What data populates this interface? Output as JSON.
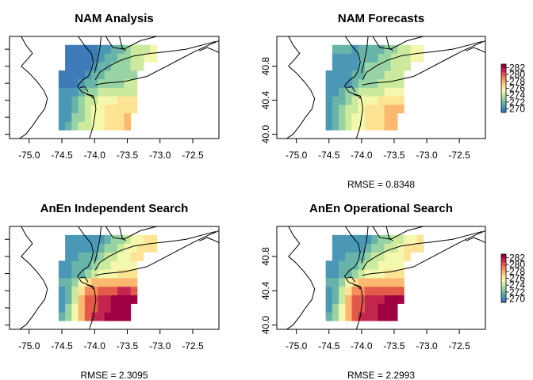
{
  "chart_data": [
    {
      "type": "heatmap",
      "title": "NAM Analysis",
      "x_ticks": [
        "-75.0",
        "-74.5",
        "-74.0",
        "-73.5",
        "-73.0",
        "-72.5"
      ],
      "y_ticks": [],
      "rmse_label": "",
      "colorbar": false
    },
    {
      "type": "heatmap",
      "title": "NAM Forecasts",
      "x_ticks": [
        "-75.0",
        "-74.5",
        "-74.0",
        "-73.5",
        "-73.0",
        "-72.5"
      ],
      "y_ticks": [
        "40.0",
        "40.4",
        "40.8"
      ],
      "rmse_label": "RMSE = 0.8348",
      "colorbar": true
    },
    {
      "type": "heatmap",
      "title": "AnEn Independent Search",
      "x_ticks": [
        "-75.0",
        "-74.5",
        "-74.0",
        "-73.5",
        "-73.0",
        "-72.5"
      ],
      "y_ticks": [],
      "rmse_label": "RMSE = 2.3095",
      "colorbar": false
    },
    {
      "type": "heatmap",
      "title": "AnEn Operational Search",
      "x_ticks": [
        "-75.0",
        "-74.5",
        "-74.0",
        "-73.5",
        "-73.0",
        "-72.5"
      ],
      "y_ticks": [
        "40.0",
        "40.4",
        "40.8"
      ],
      "rmse_label": "RMSE = 2.2993",
      "colorbar": true
    }
  ],
  "xlim": [
    -75.3,
    -72.1
  ],
  "ylim": [
    39.95,
    41.15
  ],
  "grid": {
    "lon_start": -74.55,
    "lat_start": 40.05,
    "step": 0.1,
    "cols": 15,
    "rows": 10
  },
  "colorbar_ticks": [
    "282",
    "280",
    "278",
    "276",
    "274",
    "272",
    "270"
  ],
  "colorbar_range": [
    269,
    283
  ],
  "palette": [
    "#3E7BB8",
    "#4A98B5",
    "#69B4A8",
    "#98D3A3",
    "#CCEA9E",
    "#F3F8AC",
    "#FDE394",
    "#FCB86F",
    "#F58C59",
    "#E25A4A",
    "#C4254E",
    "#9E0142"
  ],
  "fields": [
    {
      "temps": [
        [
          270.5,
          271.5,
          272.8,
          273.8,
          274.6,
          275.2,
          275.8,
          276.3,
          276.8,
          277.0,
          277.2,
          null,
          null,
          null,
          null
        ],
        [
          270.4,
          271.3,
          272.6,
          273.6,
          274.5,
          275.1,
          275.7,
          276.3,
          276.7,
          277.0,
          277.2,
          null,
          null,
          null,
          null
        ],
        [
          270.5,
          271.0,
          272.3,
          273.6,
          274.4,
          275.0,
          275.5,
          276.1,
          276.5,
          276.8,
          277.0,
          277.0,
          null,
          null,
          null
        ],
        [
          270.7,
          271.2,
          272.0,
          273.1,
          274.0,
          274.6,
          275.1,
          275.5,
          275.8,
          276.0,
          276.0,
          276.0,
          null,
          null,
          null
        ],
        [
          270.8,
          271.0,
          271.2,
          272.2,
          273.0,
          273.6,
          273.8,
          274.0,
          274.2,
          274.4,
          274.5,
          274.6,
          null,
          null,
          null
        ],
        [
          268.7,
          268.9,
          269.3,
          270.4,
          271.4,
          272.3,
          272.8,
          273.1,
          273.3,
          273.5,
          273.7,
          273.9,
          null,
          null,
          null
        ],
        [
          268.4,
          268.6,
          268.9,
          269.6,
          270.6,
          271.6,
          272.2,
          272.6,
          272.9,
          273.1,
          273.3,
          273.5,
          null,
          null,
          null
        ],
        [
          null,
          268.6,
          268.9,
          269.1,
          269.8,
          270.8,
          271.7,
          272.1,
          272.6,
          273.2,
          273.5,
          273.9,
          274.2,
          null,
          null
        ],
        [
          null,
          269.4,
          269.2,
          269.0,
          269.3,
          270.0,
          270.9,
          271.6,
          272.1,
          272.9,
          273.5,
          274.1,
          274.6,
          275.0,
          275.3
        ],
        [
          null,
          269.6,
          269.5,
          269.4,
          269.6,
          270.1,
          270.6,
          271.0,
          271.6,
          272.3,
          273.1,
          273.7,
          274.2,
          274.8,
          275.2
        ]
      ]
    },
    {
      "temps": [
        [
          271.0,
          272.0,
          273.0,
          274.2,
          275.0,
          275.6,
          276.2,
          276.7,
          277.1,
          277.4,
          277.6,
          null,
          null,
          null,
          null
        ],
        [
          270.9,
          271.8,
          272.8,
          274.0,
          274.9,
          275.5,
          276.1,
          276.6,
          277.0,
          277.3,
          277.5,
          null,
          null,
          null,
          null
        ],
        [
          270.8,
          271.6,
          272.5,
          273.9,
          274.8,
          275.4,
          276.0,
          276.5,
          276.9,
          277.2,
          277.3,
          277.3,
          null,
          null,
          null
        ],
        [
          271.0,
          271.5,
          272.2,
          273.4,
          274.4,
          275.0,
          275.5,
          275.9,
          276.2,
          276.4,
          276.4,
          276.3,
          null,
          null,
          null
        ],
        [
          271.3,
          271.3,
          271.6,
          272.6,
          273.6,
          274.2,
          274.4,
          274.6,
          274.8,
          275.0,
          275.0,
          275.0,
          null,
          null,
          null
        ],
        [
          270.6,
          270.8,
          271.0,
          271.2,
          272.0,
          272.9,
          273.4,
          273.6,
          273.8,
          274.0,
          274.1,
          274.2,
          null,
          null,
          null
        ],
        [
          270.6,
          270.8,
          271.0,
          271.1,
          271.4,
          272.4,
          273.0,
          273.3,
          273.6,
          273.8,
          273.9,
          274.0,
          null,
          null,
          null
        ],
        [
          null,
          270.9,
          271.1,
          271.2,
          271.3,
          271.6,
          272.5,
          272.9,
          273.2,
          273.6,
          273.9,
          274.2,
          274.4,
          null,
          null
        ],
        [
          null,
          271.2,
          271.3,
          271.3,
          271.2,
          271.4,
          271.9,
          272.3,
          272.7,
          273.2,
          273.7,
          274.2,
          274.7,
          275.0,
          275.2
        ],
        [
          null,
          271.4,
          271.4,
          271.4,
          271.3,
          271.4,
          271.6,
          271.9,
          272.3,
          272.8,
          273.3,
          273.9,
          274.4,
          274.9,
          275.2
        ]
      ]
    },
    {
      "temps": [
        [
          271.5,
          273.0,
          275.5,
          278.2,
          280.0,
          280.8,
          281.4,
          281.9,
          282.3,
          282.6,
          282.8,
          null,
          null,
          null,
          null
        ],
        [
          271.3,
          272.7,
          275.0,
          277.8,
          279.8,
          280.6,
          281.2,
          281.7,
          282.1,
          282.4,
          282.6,
          null,
          null,
          null,
          null
        ],
        [
          271.0,
          272.3,
          274.5,
          277.6,
          279.6,
          280.4,
          281.0,
          281.5,
          281.9,
          282.1,
          282.2,
          282.2,
          null,
          null,
          null
        ],
        [
          271.2,
          272.0,
          273.8,
          276.6,
          278.5,
          279.3,
          279.8,
          280.2,
          280.5,
          280.7,
          280.7,
          280.6,
          null,
          null,
          null
        ],
        [
          271.8,
          272.1,
          273.0,
          275.0,
          276.6,
          277.3,
          277.7,
          277.9,
          278.1,
          278.3,
          278.3,
          278.2,
          null,
          null,
          null
        ],
        [
          271.0,
          271.2,
          271.5,
          271.8,
          273.0,
          274.4,
          275.2,
          275.6,
          275.9,
          276.1,
          276.3,
          276.4,
          null,
          null,
          null
        ],
        [
          270.9,
          271.1,
          271.4,
          271.6,
          271.9,
          273.2,
          274.2,
          274.8,
          275.2,
          275.5,
          275.7,
          275.8,
          null,
          null,
          null
        ],
        [
          null,
          271.0,
          271.3,
          271.5,
          271.6,
          272.0,
          273.4,
          274.2,
          274.6,
          275.0,
          275.5,
          276.0,
          276.3,
          null,
          null
        ],
        [
          null,
          270.9,
          271.0,
          271.1,
          271.0,
          271.3,
          272.2,
          273.0,
          273.6,
          274.2,
          274.9,
          275.6,
          276.1,
          276.4,
          276.5
        ],
        [
          null,
          270.8,
          270.9,
          270.9,
          270.8,
          271.0,
          271.3,
          271.9,
          272.6,
          273.3,
          274.1,
          274.9,
          275.5,
          276.0,
          276.3
        ]
      ]
    },
    {
      "temps": [
        [
          271.4,
          272.9,
          275.3,
          278.0,
          279.9,
          280.7,
          281.3,
          281.8,
          282.2,
          282.5,
          282.7,
          null,
          null,
          null,
          null
        ],
        [
          271.2,
          272.6,
          274.9,
          277.7,
          279.7,
          280.5,
          281.1,
          281.6,
          282.0,
          282.3,
          282.5,
          null,
          null,
          null,
          null
        ],
        [
          271.0,
          272.2,
          274.4,
          277.5,
          279.5,
          280.3,
          280.9,
          281.4,
          281.8,
          282.0,
          282.1,
          282.1,
          null,
          null,
          null
        ],
        [
          271.2,
          272.0,
          273.8,
          276.5,
          278.4,
          279.2,
          279.7,
          280.1,
          280.4,
          280.6,
          280.6,
          280.5,
          null,
          null,
          null
        ],
        [
          271.7,
          272.0,
          272.9,
          274.9,
          276.5,
          277.2,
          277.6,
          277.8,
          278.0,
          278.2,
          278.2,
          278.1,
          null,
          null,
          null
        ],
        [
          271.0,
          271.2,
          271.5,
          271.8,
          273.0,
          274.3,
          275.1,
          275.5,
          275.8,
          276.0,
          276.2,
          276.3,
          null,
          null,
          null
        ],
        [
          270.9,
          271.1,
          271.4,
          271.6,
          271.9,
          273.1,
          274.1,
          274.7,
          275.1,
          275.4,
          275.6,
          275.7,
          null,
          null,
          null
        ],
        [
          null,
          271.0,
          271.3,
          271.5,
          271.6,
          272.0,
          273.3,
          274.1,
          274.5,
          274.9,
          275.4,
          275.9,
          276.2,
          null,
          null
        ],
        [
          null,
          270.9,
          271.0,
          271.1,
          271.0,
          271.3,
          272.1,
          272.9,
          273.5,
          274.1,
          274.8,
          275.5,
          276.0,
          276.3,
          276.4
        ],
        [
          null,
          270.8,
          270.9,
          270.9,
          270.8,
          271.0,
          271.3,
          271.9,
          272.5,
          273.2,
          274.0,
          274.8,
          275.4,
          275.9,
          276.2
        ]
      ]
    }
  ]
}
